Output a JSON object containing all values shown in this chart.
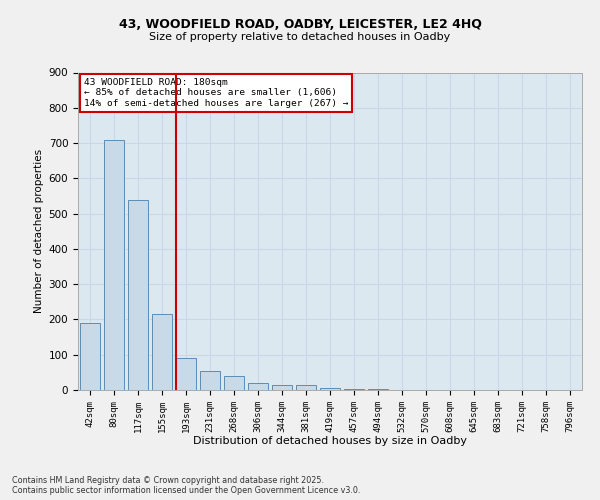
{
  "title_line1": "43, WOODFIELD ROAD, OADBY, LEICESTER, LE2 4HQ",
  "title_line2": "Size of property relative to detached houses in Oadby",
  "xlabel": "Distribution of detached houses by size in Oadby",
  "ylabel": "Number of detached properties",
  "categories": [
    "42sqm",
    "80sqm",
    "117sqm",
    "155sqm",
    "193sqm",
    "231sqm",
    "268sqm",
    "306sqm",
    "344sqm",
    "381sqm",
    "419sqm",
    "457sqm",
    "494sqm",
    "532sqm",
    "570sqm",
    "608sqm",
    "645sqm",
    "683sqm",
    "721sqm",
    "758sqm",
    "796sqm"
  ],
  "values": [
    190,
    710,
    540,
    215,
    90,
    55,
    40,
    20,
    15,
    15,
    5,
    3,
    2,
    1,
    1,
    1,
    1,
    1,
    1,
    1,
    1
  ],
  "bar_color": "#c8d9e8",
  "bar_edge_color": "#5b8db8",
  "grid_color": "#c8d8e8",
  "background_color": "#dce8f0",
  "fig_background_color": "#f0f0f0",
  "vline_color": "#cc0000",
  "vline_pos": 3.57,
  "annotation_text": "43 WOODFIELD ROAD: 180sqm\n← 85% of detached houses are smaller (1,606)\n14% of semi-detached houses are larger (267) →",
  "annotation_box_color": "#cc0000",
  "annotation_fill": "#ffffff",
  "footer_text": "Contains HM Land Registry data © Crown copyright and database right 2025.\nContains public sector information licensed under the Open Government Licence v3.0.",
  "ylim": [
    0,
    900
  ],
  "yticks": [
    0,
    100,
    200,
    300,
    400,
    500,
    600,
    700,
    800,
    900
  ]
}
